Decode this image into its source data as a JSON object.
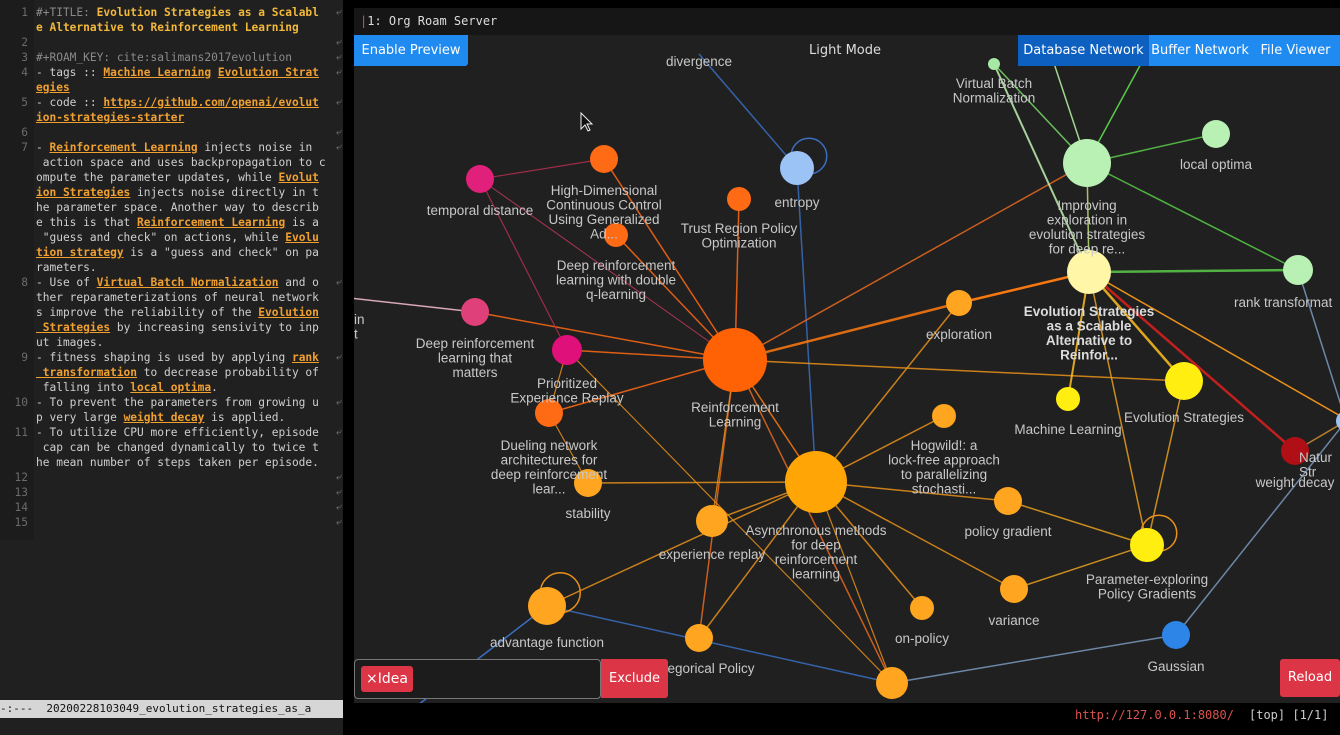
{
  "editor": {
    "lines": [
      {
        "n": "1",
        "segs": [
          {
            "t": "#+TITLE: ",
            "c": "dim"
          },
          {
            "t": "Evolution Strategies as a Scalabl",
            "c": "ttl"
          }
        ]
      },
      {
        "n": "",
        "segs": [
          {
            "t": "e Alternative to Reinforcement Learning",
            "c": "ttl"
          }
        ]
      },
      {
        "n": "2",
        "segs": []
      },
      {
        "n": "3",
        "segs": [
          {
            "t": "#+ROAM_KEY: cite:salimans2017evolution",
            "c": "dim"
          }
        ]
      },
      {
        "n": "4",
        "segs": [
          {
            "t": "- tags :: "
          },
          {
            "t": "Machine Learning",
            "c": "lnk"
          },
          {
            "t": " "
          },
          {
            "t": "Evolution Strat",
            "c": "lnk"
          }
        ]
      },
      {
        "n": "",
        "segs": [
          {
            "t": "egies",
            "c": "lnk"
          }
        ]
      },
      {
        "n": "5",
        "segs": [
          {
            "t": "- code :: "
          },
          {
            "t": "https://github.com/openai/evolut",
            "c": "lnk"
          }
        ]
      },
      {
        "n": "",
        "segs": [
          {
            "t": "ion-strategies-starter",
            "c": "lnk"
          }
        ]
      },
      {
        "n": "6",
        "segs": []
      },
      {
        "n": "7",
        "segs": [
          {
            "t": "- "
          },
          {
            "t": "Reinforcement Learning",
            "c": "lnk"
          },
          {
            "t": " injects noise in"
          }
        ]
      },
      {
        "n": "",
        "segs": [
          {
            "t": " action space and uses backpropagation to c"
          }
        ]
      },
      {
        "n": "",
        "segs": [
          {
            "t": "ompute the parameter updates, while "
          },
          {
            "t": "Evolut",
            "c": "lnk"
          }
        ]
      },
      {
        "n": "",
        "segs": [
          {
            "t": "ion Strategies",
            "c": "lnk"
          },
          {
            "t": " injects noise directly in t"
          }
        ]
      },
      {
        "n": "",
        "segs": [
          {
            "t": "he parameter space. Another way to describ"
          }
        ]
      },
      {
        "n": "",
        "segs": [
          {
            "t": "e this is that "
          },
          {
            "t": "Reinforcement Learning",
            "c": "lnk"
          },
          {
            "t": " is a"
          }
        ]
      },
      {
        "n": "",
        "segs": [
          {
            "t": " \"guess and check\" on actions, while "
          },
          {
            "t": "Evolu",
            "c": "lnk"
          }
        ]
      },
      {
        "n": "",
        "segs": [
          {
            "t": "tion strategy",
            "c": "lnk"
          },
          {
            "t": " is a \"guess and check\" on pa"
          }
        ]
      },
      {
        "n": "",
        "segs": [
          {
            "t": "rameters."
          }
        ]
      },
      {
        "n": "8",
        "segs": [
          {
            "t": "- Use of "
          },
          {
            "t": "Virtual Batch Normalization",
            "c": "lnk"
          },
          {
            "t": " and o"
          }
        ]
      },
      {
        "n": "",
        "segs": [
          {
            "t": "ther reparameterizations of neural network"
          }
        ]
      },
      {
        "n": "",
        "segs": [
          {
            "t": "s improve the reliability of the "
          },
          {
            "t": "Evolution",
            "c": "lnk"
          }
        ]
      },
      {
        "n": "",
        "segs": [
          {
            "t": " Strategies",
            "c": "lnk"
          },
          {
            "t": " by increasing sensivity to inp"
          }
        ]
      },
      {
        "n": "",
        "segs": [
          {
            "t": "ut images."
          }
        ]
      },
      {
        "n": "9",
        "segs": [
          {
            "t": "- fitness shaping is used by applying "
          },
          {
            "t": "rank",
            "c": "lnk"
          }
        ]
      },
      {
        "n": "",
        "segs": [
          {
            "t": " transformation",
            "c": "lnk"
          },
          {
            "t": " to decrease probability of"
          }
        ]
      },
      {
        "n": "",
        "segs": [
          {
            "t": " falling into "
          },
          {
            "t": "local optima",
            "c": "lnk"
          },
          {
            "t": "."
          }
        ]
      },
      {
        "n": "10",
        "segs": [
          {
            "t": "- To prevent the parameters from growing u"
          }
        ]
      },
      {
        "n": "",
        "segs": [
          {
            "t": "p very large "
          },
          {
            "t": "weight decay",
            "c": "lnk"
          },
          {
            "t": " is applied."
          }
        ]
      },
      {
        "n": "11",
        "segs": [
          {
            "t": "- To utilize CPU more efficiently, episode"
          }
        ]
      },
      {
        "n": "",
        "segs": [
          {
            "t": " cap can be changed dynamically to twice t"
          }
        ]
      },
      {
        "n": "",
        "segs": [
          {
            "t": "he mean number of steps taken per episode."
          }
        ]
      },
      {
        "n": "12",
        "segs": []
      },
      {
        "n": "13",
        "segs": []
      },
      {
        "n": "14",
        "segs": []
      },
      {
        "n": "15",
        "segs": []
      }
    ],
    "modeline": "-:---  20200228103049_evolution_strategies_as_a"
  },
  "browser": {
    "tab_title": "1: Org Roam Server",
    "enable_preview": "Enable Preview",
    "theme_toggle": "Light Mode",
    "tabs": [
      "Database Network",
      "Buffer Network",
      "File Viewer"
    ],
    "filter_chip": "Idea",
    "exclude_label": "Exclude",
    "reload_label": "Reload",
    "status_url": "http://127.0.0.1:8080/",
    "status_rest": "[top] [1/1]"
  },
  "graph": {
    "nodes": [
      {
        "id": "divergence",
        "label": "divergence",
        "color": "#9a9a9a"
      },
      {
        "id": "entropy",
        "label": "entropy",
        "color": "#9cc3f5"
      },
      {
        "id": "vbn",
        "label": "Virtual Batch\nNormalization",
        "color": "#a7e8a4"
      },
      {
        "id": "improving",
        "label": "Improving\nexploration in\nevolution strategies\nfor deep re...",
        "color": "#b9f0b3"
      },
      {
        "id": "localopt",
        "label": "local optima",
        "color": "#b9f0b3"
      },
      {
        "id": "temporal",
        "label": "temporal distance",
        "color": "#e0207a"
      },
      {
        "id": "hdcc",
        "label": "High-Dimensional\nContinuous Control\nUsing Generalized\nAd...",
        "color": "#ff6a14"
      },
      {
        "id": "trpo",
        "label": "Trust Region Policy\nOptimization",
        "color": "#ff6a14"
      },
      {
        "id": "ddqn",
        "label": "Deep reinforcement\nlearning with double\nq-learning",
        "color": "#ff6a14"
      },
      {
        "id": "esscal",
        "label": "Evolution Strategies\nas a Scalable\nAlternative to\nReinfor...",
        "color": "#fff6a8"
      },
      {
        "id": "rank",
        "label": "rank transformat",
        "color": "#b9f0b3"
      },
      {
        "id": "exploration",
        "label": "exploration",
        "color": "#ffa51f"
      },
      {
        "id": "drlm",
        "label": "Deep reinforcement\nlearning that\nmatters",
        "color": "#e0407a"
      },
      {
        "id": "per",
        "label": "Prioritized\nExperience Replay",
        "color": "#e0107a"
      },
      {
        "id": "rl",
        "label": "Reinforcement\nLearning",
        "color": "#ff6205"
      },
      {
        "id": "ml",
        "label": "Machine Learning",
        "color": "#ffee10"
      },
      {
        "id": "es",
        "label": "Evolution Strategies",
        "color": "#ffee10"
      },
      {
        "id": "wd",
        "label": "weight decay",
        "color": "#b01015"
      },
      {
        "id": "natur",
        "label": "Natur\nStr",
        "color": "#9cc3f5"
      },
      {
        "id": "dueling",
        "label": "Dueling network\narchitectures for\ndeep reinforcement\nlear...",
        "color": "#ff6a14"
      },
      {
        "id": "hogwild",
        "label": "Hogwild!: a\nlock-free approach\nto parallelizing\nstochasti...",
        "color": "#ffa51f"
      },
      {
        "id": "stability",
        "label": "stability",
        "color": "#ffa51f"
      },
      {
        "id": "a3c",
        "label": "Asynchronous methods\nfor deep\nreinforcement\nlearning",
        "color": "#ffa505"
      },
      {
        "id": "policygrad",
        "label": "policy gradient",
        "color": "#ffa51f"
      },
      {
        "id": "expreplay",
        "label": "experience replay",
        "color": "#ffa51f"
      },
      {
        "id": "pepg",
        "label": "Parameter-exploring\nPolicy Gradients",
        "color": "#ffee10"
      },
      {
        "id": "advantage",
        "label": "advantage function",
        "color": "#ffa51f"
      },
      {
        "id": "onpolicy",
        "label": "on-policy",
        "color": "#ffa51f"
      },
      {
        "id": "variance",
        "label": "variance",
        "color": "#ffa51f"
      },
      {
        "id": "gaussian",
        "label": "Gaussian",
        "color": "#2e85e8"
      },
      {
        "id": "categorical",
        "label": "egorical Policy",
        "color": "#ffa51f"
      },
      {
        "id": "bottom",
        "label": "",
        "color": "#ffa51f"
      },
      {
        "id": "leftedge",
        "label": "in\nt",
        "color": "#ffa51f"
      }
    ]
  }
}
